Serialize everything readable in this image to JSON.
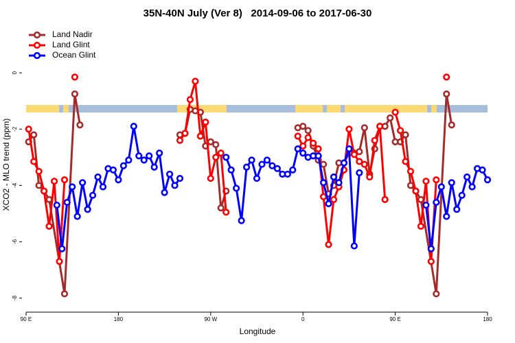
{
  "chart_data": {
    "type": "line",
    "title": "35N-40N July (Ver 8)   2014-09-06 to 2017-06-30",
    "x_label": "Longitude",
    "y_label": "XCO2 - MLO trend (ppm)",
    "xlim": [
      90,
      540
    ],
    "xticks": [
      {
        "value": 90,
        "label": "90 E"
      },
      180,
      {
        "value": 270,
        "label": "90 W"
      },
      {
        "value": 360,
        "label": "0"
      },
      {
        "value": 450,
        "label": "90 E"
      },
      {
        "value": 540,
        "label": "180"
      }
    ],
    "ylim": [
      -8.5,
      2.1
    ],
    "yticks": [
      0,
      -2,
      -4,
      -6,
      -8
    ],
    "legend": "top-left",
    "series": [
      {
        "name": "Land Nadir",
        "color": "#a52a2a",
        "x": [
          92.5,
          97.5,
          102.5,
          107.5,
          112.5,
          127.5,
          137.5,
          142.5,
          190,
          240,
          245,
          250,
          255,
          260,
          265,
          270,
          275,
          280,
          285,
          320,
          355,
          360,
          365,
          370,
          375,
          380,
          385,
          390,
          395,
          400,
          405,
          410,
          415,
          420,
          425,
          430,
          435,
          440,
          445,
          450,
          455,
          460,
          465,
          470,
          475,
          490,
          500,
          505
        ],
        "values": [
          -2.45,
          -2.2,
          -4.0,
          -4.2,
          -4.5,
          -7.85,
          -0.75,
          -1.85,
          null,
          -2.2,
          -2.15,
          -1.3,
          -1.35,
          -1.4,
          -2.6,
          -2.45,
          -2.55,
          -4.8,
          -4.2,
          null,
          -1.95,
          -1.9,
          -2.05,
          -2.6,
          -3.1,
          -3.25,
          -4.3,
          -4.0,
          -3.2,
          -3.2,
          -2.85,
          -2.85,
          -2.8,
          -1.95,
          -3.6,
          -2.7,
          -1.9,
          -1.9,
          -1.6,
          -2.45,
          -2.45,
          -2.2,
          -4.0,
          -4.2,
          -4.5,
          -7.85,
          -0.75,
          -1.85
        ]
      },
      {
        "name": "Land Glint",
        "color": "#ff0000",
        "x": [
          92.5,
          97.5,
          102.5,
          107.5,
          112.5,
          117.5,
          122.5,
          127.5,
          132.5,
          137.5,
          190,
          240,
          245,
          250,
          255,
          260,
          265,
          270,
          275,
          280,
          285,
          320,
          355,
          360,
          365,
          370,
          375,
          380,
          385,
          390,
          395,
          400,
          405,
          410,
          415,
          420,
          425,
          430,
          435,
          440,
          445,
          450,
          455,
          460,
          465,
          470,
          475,
          480,
          485,
          490,
          495,
          500
        ],
        "values": [
          -2.0,
          -3.15,
          -3.5,
          -4.2,
          -5.45,
          -3.85,
          -6.7,
          -3.8,
          null,
          -0.15,
          null,
          -2.4,
          -2.15,
          -0.95,
          -0.3,
          -2.25,
          -1.75,
          -3.75,
          -3.0,
          -2.85,
          -4.95,
          null,
          -2.25,
          -2.6,
          -2.3,
          -2.5,
          -2.7,
          -4.4,
          -6.1,
          -4.5,
          -4.05,
          -3.45,
          -2.0,
          -2.9,
          -3.15,
          -3.25,
          -3.7,
          -2.4,
          -1.9,
          -4.5,
          null,
          -1.4,
          -2.05,
          -3.15,
          -3.5,
          -4.2,
          -5.45,
          -3.85,
          -6.7,
          -3.8,
          null,
          -0.15
        ]
      },
      {
        "name": "Ocean Glint",
        "color": "#0000ff",
        "x": [
          120,
          125,
          130,
          135,
          140,
          145,
          150,
          155,
          160,
          165,
          170,
          175,
          180,
          185,
          190,
          195,
          200,
          205,
          210,
          215,
          220,
          225,
          230,
          235,
          240,
          262.5,
          285,
          290,
          295,
          300,
          305,
          310,
          315,
          320,
          325,
          330,
          335,
          340,
          345,
          350,
          355,
          360,
          365,
          370,
          375,
          380,
          385,
          390,
          395,
          400,
          405,
          410,
          415,
          447.5,
          480,
          485,
          490,
          495,
          500,
          505,
          510,
          515,
          520,
          525,
          530,
          535,
          540
        ],
        "values": [
          -4.7,
          -6.25,
          -4.6,
          -4.05,
          -5.1,
          -3.9,
          -4.85,
          -4.35,
          -3.7,
          -4.05,
          -3.4,
          -3.45,
          -3.8,
          -3.3,
          -3.1,
          -1.9,
          -2.95,
          -3.1,
          -2.95,
          -3.35,
          -2.85,
          -4.25,
          -3.6,
          -4.0,
          -3.75,
          null,
          -3.0,
          -3.45,
          -4.1,
          -5.25,
          -3.35,
          -3.1,
          -3.75,
          -3.25,
          -3.1,
          -3.3,
          -3.4,
          -3.6,
          -3.6,
          -3.45,
          -2.7,
          -2.85,
          -3.0,
          -2.95,
          -2.95,
          -3.9,
          -4.65,
          -3.7,
          -3.9,
          -3.2,
          -2.7,
          -6.15,
          -3.55,
          null,
          -4.7,
          -6.25,
          -4.6,
          -4.05,
          -5.1,
          -3.9,
          -4.85,
          -4.35,
          -3.7,
          -4.05,
          -3.4,
          -3.45,
          -3.8
        ]
      }
    ]
  }
}
